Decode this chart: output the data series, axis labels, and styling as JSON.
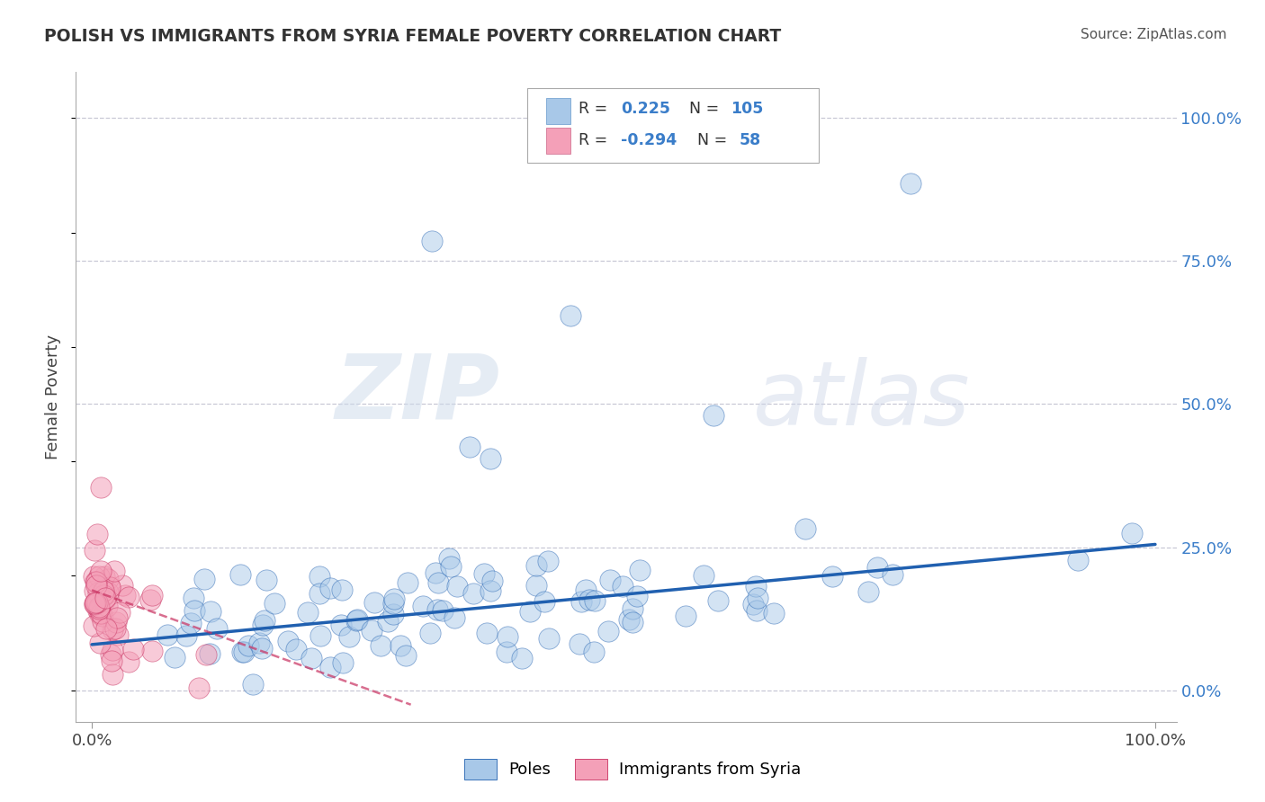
{
  "title": "POLISH VS IMMIGRANTS FROM SYRIA FEMALE POVERTY CORRELATION CHART",
  "source": "Source: ZipAtlas.com",
  "ylabel": "Female Poverty",
  "xlim": [
    0.0,
    1.0
  ],
  "ylim": [
    0.0,
    1.0
  ],
  "blue_R": "0.225",
  "blue_N": "105",
  "pink_R": "-0.294",
  "pink_N": "58",
  "legend_label_blue": "Poles",
  "legend_label_pink": "Immigrants from Syria",
  "blue_color": "#a8c8e8",
  "pink_color": "#f4a0b8",
  "blue_line_color": "#2060b0",
  "pink_line_color": "#c83060",
  "watermark_zip": "ZIP",
  "watermark_atlas": "atlas",
  "background_color": "#ffffff",
  "grid_color": "#bbbbcc",
  "title_color": "#333333",
  "source_color": "#555555",
  "tick_color": "#3a7dc9",
  "label_color": "#444444"
}
